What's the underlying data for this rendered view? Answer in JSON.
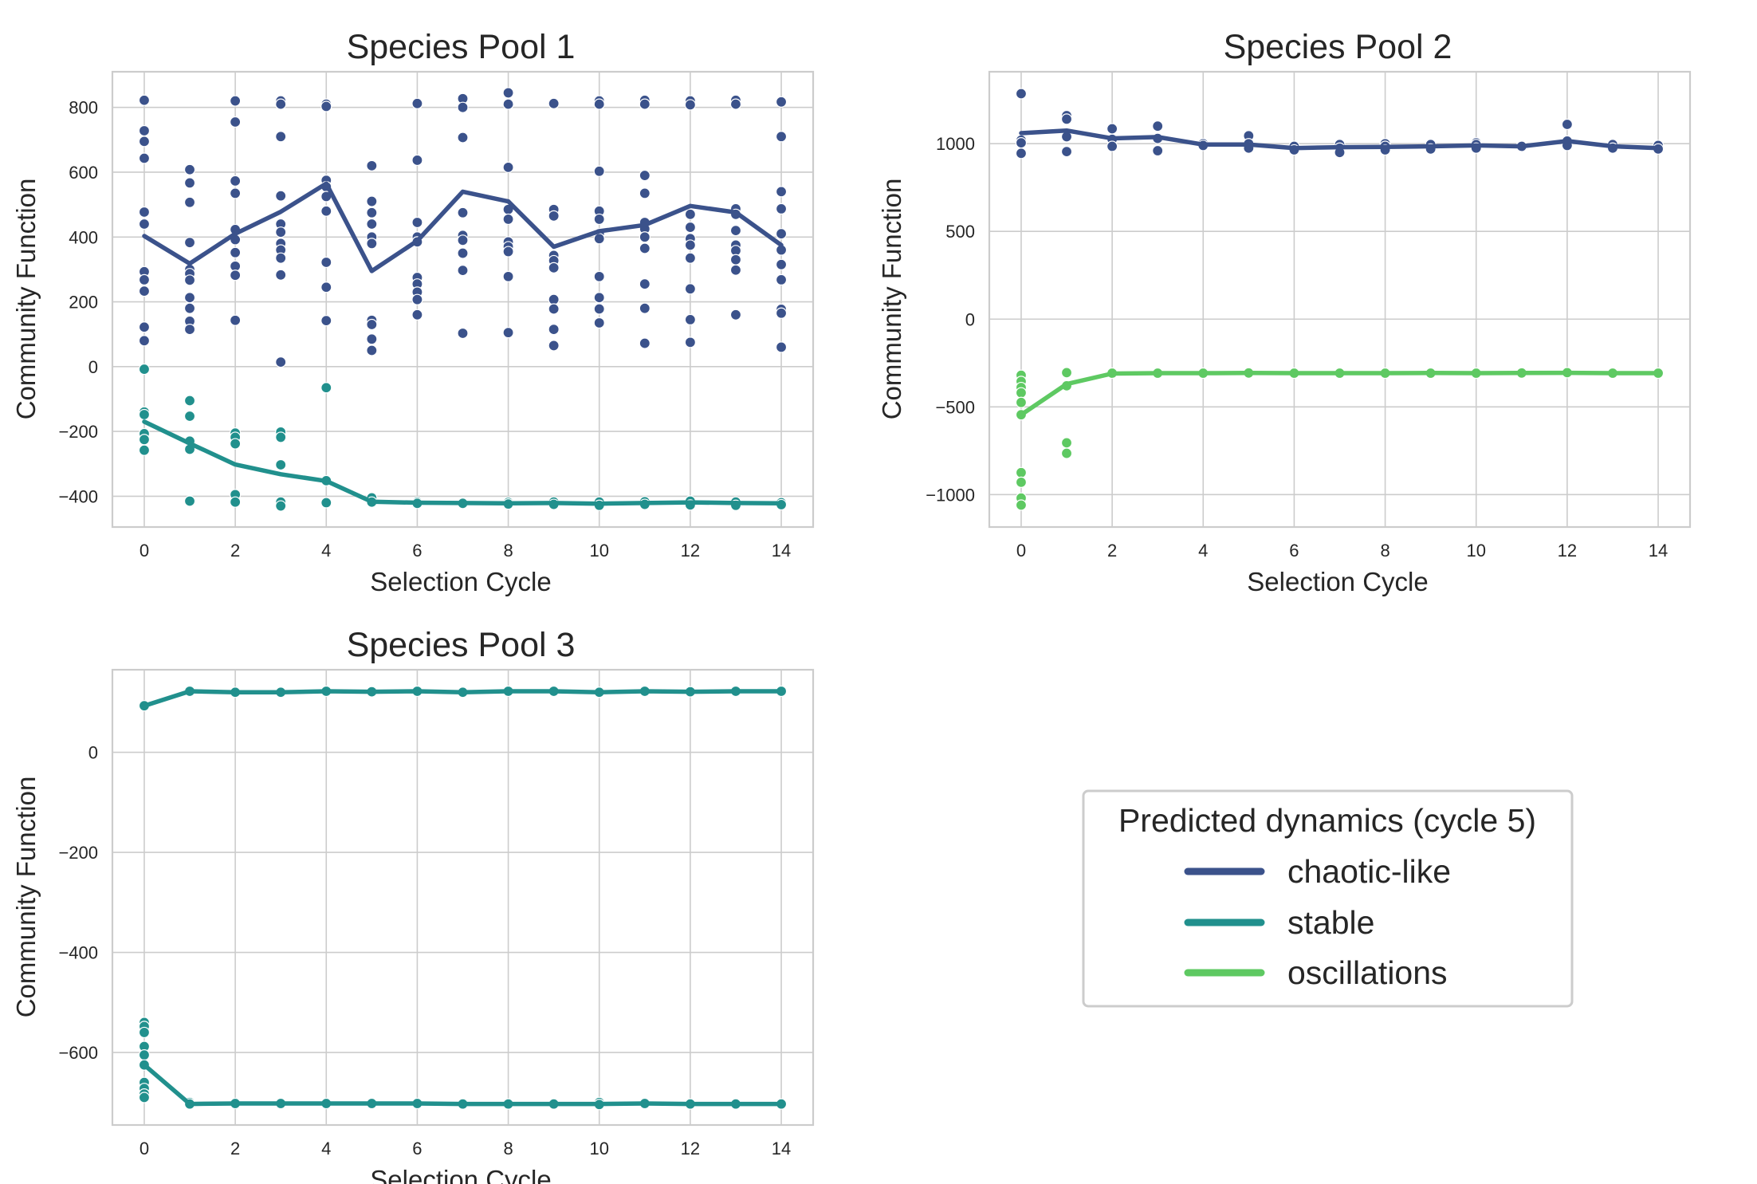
{
  "colors": {
    "chaotic-like": "#3b528b",
    "stable": "#21908d",
    "oscillations": "#5ec962",
    "grid": "#cccccc",
    "text": "#262626"
  },
  "legend": {
    "title": "Predicted dynamics (cycle 5)",
    "placement": "lower-right empty panel",
    "entries": [
      {
        "key": "chaotic-like",
        "label": "chaotic-like"
      },
      {
        "key": "stable",
        "label": "stable"
      },
      {
        "key": "oscillations",
        "label": "oscillations"
      }
    ]
  },
  "chart_data": [
    {
      "type": "line",
      "title": "Species Pool 1",
      "xlabel": "Selection Cycle",
      "ylabel": "Community Function",
      "xlim": [
        -0.7,
        14.7
      ],
      "ylim": [
        -495,
        910
      ],
      "xticks": [
        0,
        2,
        4,
        6,
        8,
        10,
        12,
        14
      ],
      "yticks": [
        -400,
        -200,
        0,
        200,
        400,
        600,
        800
      ],
      "grid": true,
      "series": [
        {
          "key": "chaotic-like",
          "x": [
            0,
            1,
            2,
            3,
            4,
            5,
            6,
            7,
            8,
            9,
            10,
            11,
            12,
            13,
            14
          ],
          "y": [
            403,
            318,
            410,
            478,
            565,
            295,
            388,
            540,
            510,
            370,
            418,
            437,
            496,
            476,
            375
          ]
        },
        {
          "key": "stable",
          "x": [
            0,
            1,
            2,
            3,
            4,
            5,
            6,
            7,
            8,
            9,
            10,
            11,
            12,
            13,
            14
          ],
          "y": [
            -170,
            -237,
            -302,
            -332,
            -353,
            -417,
            -420,
            -421,
            -422,
            -421,
            -423,
            -421,
            -419,
            -421,
            -422
          ]
        }
      ],
      "points": [
        {
          "key": "chaotic-like",
          "x": 0,
          "y": [
            822,
            728,
            695,
            643,
            477,
            440,
            293,
            268,
            233,
            122,
            80
          ]
        },
        {
          "key": "chaotic-like",
          "x": 1,
          "y": [
            608,
            567,
            507,
            383,
            300,
            287,
            267,
            213,
            180,
            140,
            115
          ]
        },
        {
          "key": "chaotic-like",
          "x": 2,
          "y": [
            820,
            755,
            573,
            535,
            423,
            392,
            352,
            310,
            282,
            143
          ]
        },
        {
          "key": "chaotic-like",
          "x": 3,
          "y": [
            820,
            810,
            710,
            527,
            440,
            415,
            380,
            360,
            335,
            283,
            14
          ]
        },
        {
          "key": "chaotic-like",
          "x": 4,
          "y": [
            810,
            803,
            575,
            555,
            525,
            480,
            322,
            245,
            142
          ]
        },
        {
          "key": "chaotic-like",
          "x": 5,
          "y": [
            620,
            510,
            475,
            440,
            400,
            380,
            143,
            130,
            85,
            50
          ]
        },
        {
          "key": "chaotic-like",
          "x": 6,
          "y": [
            812,
            637,
            445,
            400,
            385,
            275,
            255,
            230,
            207,
            160
          ]
        },
        {
          "key": "chaotic-like",
          "x": 7,
          "y": [
            827,
            800,
            707,
            475,
            405,
            390,
            350,
            297,
            103
          ]
        },
        {
          "key": "chaotic-like",
          "x": 8,
          "y": [
            845,
            810,
            615,
            485,
            455,
            385,
            370,
            355,
            278,
            105
          ]
        },
        {
          "key": "chaotic-like",
          "x": 9,
          "y": [
            812,
            485,
            465,
            343,
            327,
            305,
            207,
            178,
            115,
            65
          ]
        },
        {
          "key": "chaotic-like",
          "x": 10,
          "y": [
            820,
            810,
            603,
            480,
            455,
            410,
            395,
            278,
            213,
            178,
            135
          ]
        },
        {
          "key": "chaotic-like",
          "x": 11,
          "y": [
            822,
            810,
            590,
            535,
            445,
            425,
            400,
            365,
            255,
            180,
            72
          ]
        },
        {
          "key": "chaotic-like",
          "x": 12,
          "y": [
            820,
            808,
            470,
            430,
            395,
            375,
            335,
            240,
            145,
            75
          ]
        },
        {
          "key": "chaotic-like",
          "x": 13,
          "y": [
            822,
            810,
            487,
            470,
            420,
            375,
            358,
            330,
            298,
            160
          ]
        },
        {
          "key": "chaotic-like",
          "x": 14,
          "y": [
            817,
            710,
            540,
            487,
            410,
            360,
            315,
            268,
            177,
            165,
            60
          ]
        },
        {
          "key": "stable",
          "x": 0,
          "y": [
            -8,
            -140,
            -148,
            -207,
            -225,
            -258
          ]
        },
        {
          "key": "stable",
          "x": 1,
          "y": [
            -105,
            -153,
            -230,
            -255,
            -415
          ]
        },
        {
          "key": "stable",
          "x": 2,
          "y": [
            -205,
            -218,
            -238,
            -395,
            -418
          ]
        },
        {
          "key": "stable",
          "x": 3,
          "y": [
            -202,
            -218,
            -303,
            -418,
            -430
          ]
        },
        {
          "key": "stable",
          "x": 4,
          "y": [
            -65,
            -352,
            -420
          ]
        },
        {
          "key": "stable",
          "x": 5,
          "y": [
            -405,
            -418
          ]
        },
        {
          "key": "stable",
          "x": 6,
          "y": [
            -418,
            -422
          ]
        },
        {
          "key": "stable",
          "x": 7,
          "y": [
            -419,
            -422
          ]
        },
        {
          "key": "stable",
          "x": 8,
          "y": [
            -419,
            -424
          ]
        },
        {
          "key": "stable",
          "x": 9,
          "y": [
            -418,
            -425
          ]
        },
        {
          "key": "stable",
          "x": 10,
          "y": [
            -418,
            -428
          ]
        },
        {
          "key": "stable",
          "x": 11,
          "y": [
            -417,
            -425
          ]
        },
        {
          "key": "stable",
          "x": 12,
          "y": [
            -415,
            -427
          ]
        },
        {
          "key": "stable",
          "x": 13,
          "y": [
            -418,
            -428
          ]
        },
        {
          "key": "stable",
          "x": 14,
          "y": [
            -420,
            -426
          ]
        }
      ]
    },
    {
      "type": "line",
      "title": "Species Pool 2",
      "xlabel": "Selection Cycle",
      "ylabel": "Community Function",
      "xlim": [
        -0.7,
        14.7
      ],
      "ylim": [
        -1185,
        1410
      ],
      "xticks": [
        0,
        2,
        4,
        6,
        8,
        10,
        12,
        14
      ],
      "yticks": [
        -1000,
        -500,
        0,
        500,
        1000
      ],
      "grid": true,
      "series": [
        {
          "key": "chaotic-like",
          "x": [
            0,
            1,
            2,
            3,
            4,
            5,
            6,
            7,
            8,
            9,
            10,
            11,
            12,
            13,
            14
          ],
          "y": [
            1060,
            1075,
            1030,
            1038,
            995,
            995,
            975,
            980,
            982,
            985,
            990,
            985,
            1015,
            985,
            975
          ]
        },
        {
          "key": "oscillations",
          "x": [
            0,
            1,
            2,
            3,
            4,
            5,
            6,
            7,
            8,
            9,
            10,
            11,
            12,
            13,
            14
          ],
          "y": [
            -545,
            -370,
            -310,
            -308,
            -308,
            -307,
            -308,
            -308,
            -308,
            -307,
            -308,
            -307,
            -306,
            -308,
            -308
          ]
        }
      ],
      "points": [
        {
          "key": "chaotic-like",
          "x": 0,
          "y": [
            1285,
            1020,
            1005,
            945
          ]
        },
        {
          "key": "chaotic-like",
          "x": 1,
          "y": [
            1160,
            1140,
            1040,
            955
          ]
        },
        {
          "key": "chaotic-like",
          "x": 2,
          "y": [
            1085,
            1025,
            985
          ]
        },
        {
          "key": "chaotic-like",
          "x": 3,
          "y": [
            1100,
            1030,
            960
          ]
        },
        {
          "key": "chaotic-like",
          "x": 4,
          "y": [
            1000,
            990
          ]
        },
        {
          "key": "chaotic-like",
          "x": 5,
          "y": [
            1045,
            1000,
            975
          ]
        },
        {
          "key": "chaotic-like",
          "x": 6,
          "y": [
            985,
            965
          ]
        },
        {
          "key": "chaotic-like",
          "x": 7,
          "y": [
            995,
            975,
            950
          ]
        },
        {
          "key": "chaotic-like",
          "x": 8,
          "y": [
            1000,
            985,
            965
          ]
        },
        {
          "key": "chaotic-like",
          "x": 9,
          "y": [
            995,
            970
          ]
        },
        {
          "key": "chaotic-like",
          "x": 10,
          "y": [
            1005,
            995,
            975
          ]
        },
        {
          "key": "chaotic-like",
          "x": 11,
          "y": [
            990,
            985
          ]
        },
        {
          "key": "chaotic-like",
          "x": 12,
          "y": [
            1110,
            1015,
            990
          ]
        },
        {
          "key": "chaotic-like",
          "x": 13,
          "y": [
            995,
            975
          ]
        },
        {
          "key": "chaotic-like",
          "x": 14,
          "y": [
            990,
            970
          ]
        },
        {
          "key": "oscillations",
          "x": 0,
          "y": [
            -320,
            -355,
            -390,
            -420,
            -475,
            -545,
            -875,
            -930,
            -1020,
            -1060
          ]
        },
        {
          "key": "oscillations",
          "x": 1,
          "y": [
            -305,
            -380,
            -705,
            -765
          ]
        },
        {
          "key": "oscillations",
          "x": 2,
          "y": [
            -308
          ]
        },
        {
          "key": "oscillations",
          "x": 3,
          "y": [
            -308
          ]
        },
        {
          "key": "oscillations",
          "x": 4,
          "y": [
            -308
          ]
        },
        {
          "key": "oscillations",
          "x": 5,
          "y": [
            -307
          ]
        },
        {
          "key": "oscillations",
          "x": 6,
          "y": [
            -308
          ]
        },
        {
          "key": "oscillations",
          "x": 7,
          "y": [
            -308
          ]
        },
        {
          "key": "oscillations",
          "x": 8,
          "y": [
            -308
          ]
        },
        {
          "key": "oscillations",
          "x": 9,
          "y": [
            -305,
            -308
          ]
        },
        {
          "key": "oscillations",
          "x": 10,
          "y": [
            -308
          ]
        },
        {
          "key": "oscillations",
          "x": 11,
          "y": [
            -307
          ]
        },
        {
          "key": "oscillations",
          "x": 12,
          "y": [
            -305
          ]
        },
        {
          "key": "oscillations",
          "x": 13,
          "y": [
            -308
          ]
        },
        {
          "key": "oscillations",
          "x": 14,
          "y": [
            -308
          ]
        }
      ]
    },
    {
      "type": "line",
      "title": "Species Pool 3",
      "xlabel": "Selection Cycle",
      "ylabel": "Community Function",
      "xlim": [
        -0.7,
        14.7
      ],
      "ylim": [
        -745,
        165
      ],
      "xticks": [
        0,
        2,
        4,
        6,
        8,
        10,
        12,
        14
      ],
      "yticks": [
        -600,
        -400,
        -200,
        0
      ],
      "grid": true,
      "series": [
        {
          "key": "stable",
          "x": [
            0,
            1,
            2,
            3,
            4,
            5,
            6,
            7,
            8,
            9,
            10,
            11,
            12,
            13,
            14
          ],
          "y": [
            93,
            122,
            120,
            120,
            122,
            121,
            122,
            120,
            122,
            122,
            120,
            122,
            121,
            122,
            122
          ]
        },
        {
          "key": "stable",
          "x": [
            0,
            1,
            2,
            3,
            4,
            5,
            6,
            7,
            8,
            9,
            10,
            11,
            12,
            13,
            14
          ],
          "y": [
            -625,
            -703,
            -702,
            -702,
            -702,
            -702,
            -702,
            -703,
            -703,
            -703,
            -703,
            -702,
            -703,
            -703,
            -703
          ]
        }
      ],
      "points": [
        {
          "key": "stable",
          "x": 0,
          "y": [
            93,
            -540,
            -548,
            -560,
            -588,
            -605,
            -625,
            -660,
            -672,
            -683,
            -690
          ]
        },
        {
          "key": "stable",
          "x": 1,
          "y": [
            122,
            -700,
            -703
          ]
        },
        {
          "key": "stable",
          "x": 2,
          "y": [
            120,
            -702
          ]
        },
        {
          "key": "stable",
          "x": 3,
          "y": [
            120,
            -702
          ]
        },
        {
          "key": "stable",
          "x": 4,
          "y": [
            122,
            -702
          ]
        },
        {
          "key": "stable",
          "x": 5,
          "y": [
            121,
            -702
          ]
        },
        {
          "key": "stable",
          "x": 6,
          "y": [
            122,
            -702
          ]
        },
        {
          "key": "stable",
          "x": 7,
          "y": [
            120,
            -703
          ]
        },
        {
          "key": "stable",
          "x": 8,
          "y": [
            122,
            -703
          ]
        },
        {
          "key": "stable",
          "x": 9,
          "y": [
            122,
            -703
          ]
        },
        {
          "key": "stable",
          "x": 10,
          "y": [
            120,
            -700,
            -704
          ]
        },
        {
          "key": "stable",
          "x": 11,
          "y": [
            122,
            -702
          ]
        },
        {
          "key": "stable",
          "x": 12,
          "y": [
            121,
            -703
          ]
        },
        {
          "key": "stable",
          "x": 13,
          "y": [
            122,
            -703
          ]
        },
        {
          "key": "stable",
          "x": 14,
          "y": [
            122,
            -703
          ]
        }
      ]
    }
  ]
}
